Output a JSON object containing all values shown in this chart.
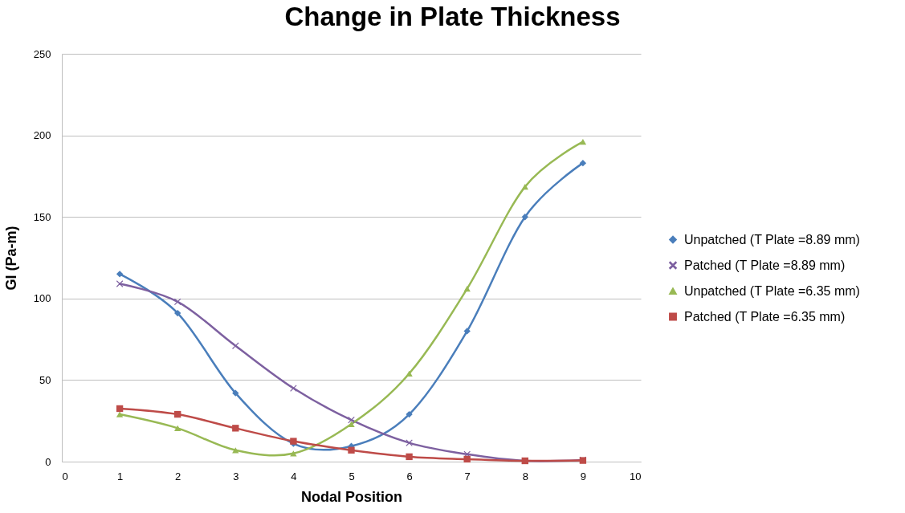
{
  "chart_data": {
    "type": "line",
    "title": "Change in Plate Thickness",
    "xlabel": "Nodal Position",
    "ylabel": "GI (Pa-m)",
    "x": [
      1,
      2,
      3,
      4,
      5,
      6,
      7,
      8,
      9
    ],
    "xlim": [
      0,
      10
    ],
    "xticks": [
      0,
      1,
      2,
      3,
      4,
      5,
      6,
      7,
      8,
      9,
      10
    ],
    "ylim": [
      0,
      250
    ],
    "yticks": [
      0,
      50,
      100,
      150,
      200,
      250
    ],
    "grid": "y",
    "legend": "right",
    "line_style": "solid",
    "series": [
      {
        "name": "Unpatched (T Plate =8.89 mm)",
        "color": "#4a7ebb",
        "marker": "diamond",
        "values": [
          115,
          91,
          42,
          11,
          9.5,
          29,
          80,
          150,
          183
        ]
      },
      {
        "name": "Patched (T Plate =8.89 mm)",
        "color": "#7d60a0",
        "marker": "cross",
        "values": [
          109,
          98,
          71,
          45,
          25.5,
          11.5,
          4.5,
          0.5,
          1
        ]
      },
      {
        "name": "Unpatched (T Plate =6.35 mm)",
        "color": "#98b954",
        "marker": "triangle",
        "values": [
          29,
          20.5,
          7,
          5,
          23,
          54,
          106,
          168.5,
          196
        ]
      },
      {
        "name": "Patched (T Plate =6.35 mm)",
        "color": "#be4b48",
        "marker": "square",
        "values": [
          32.5,
          29,
          20.5,
          12.5,
          7,
          3,
          1.5,
          0.5,
          0.7
        ]
      }
    ]
  }
}
